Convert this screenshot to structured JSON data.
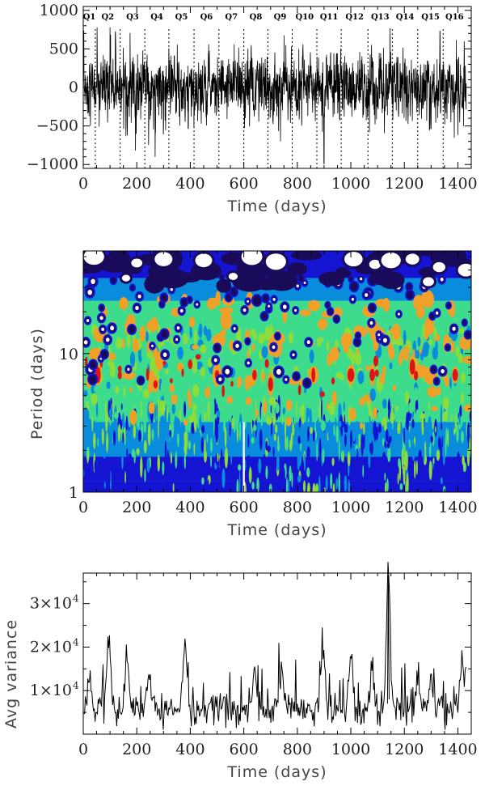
{
  "chart_data": [
    {
      "type": "line",
      "panel": "light-curve",
      "xlabel": "Time (days)",
      "ylabel": "",
      "xlim": [
        0,
        1450
      ],
      "ylim": [
        -1050,
        1050
      ],
      "xticks": [
        0,
        200,
        400,
        600,
        800,
        1000,
        1200,
        1400
      ],
      "yticks": [
        -1000,
        -500,
        0,
        500,
        1000
      ],
      "yticklabels": [
        "−1000",
        "−500",
        "0",
        "500",
        "1000"
      ],
      "quarters": [
        {
          "label": "Q1",
          "start": 0
        },
        {
          "label": "Q2",
          "start": 45
        },
        {
          "label": "Q3",
          "start": 138
        },
        {
          "label": "Q4",
          "start": 230
        },
        {
          "label": "Q5",
          "start": 320
        },
        {
          "label": "Q6",
          "start": 414
        },
        {
          "label": "Q7",
          "start": 507
        },
        {
          "label": "Q8",
          "start": 600
        },
        {
          "label": "Q9",
          "start": 690
        },
        {
          "label": "Q10",
          "start": 781
        },
        {
          "label": "Q11",
          "start": 873
        },
        {
          "label": "Q12",
          "start": 964
        },
        {
          "label": "Q13",
          "start": 1064
        },
        {
          "label": "Q14",
          "start": 1155
        },
        {
          "label": "Q15",
          "start": 1250
        },
        {
          "label": "Q16",
          "start": 1345
        }
      ],
      "quarter_boundaries": [
        45,
        138,
        230,
        320,
        414,
        507,
        600,
        690,
        781,
        873,
        964,
        1064,
        1155,
        1250,
        1345
      ],
      "series_description": "dense stochastic flux variations, mostly within ±500, occasional spikes to ~±750, one dip to ~-1000 near day 900"
    },
    {
      "type": "heatmap",
      "panel": "wavelet-power",
      "xlabel": "Time (days)",
      "ylabel": "Period (days)",
      "xlim": [
        0,
        1450
      ],
      "yscale": "log",
      "ylim": [
        1,
        55
      ],
      "xticks": [
        0,
        200,
        400,
        600,
        800,
        1000,
        1200,
        1400
      ],
      "yticks": [
        1,
        10
      ],
      "colormap": [
        "#ffffff",
        "#1a0a5a",
        "#1414d2",
        "#0a8cdc",
        "#3cdc8c",
        "#8cdc3c",
        "#f0a028",
        "#dc1414"
      ],
      "peak_periods_days": [
        6,
        7,
        8
      ],
      "peak_times_days": [
        55,
        270,
        500,
        640,
        700,
        860,
        1000,
        1080,
        1230,
        1390
      ],
      "gap_at_day": 600
    },
    {
      "type": "line",
      "panel": "average-variance",
      "xlabel": "Time (days)",
      "ylabel": "Avg variance",
      "xlim": [
        0,
        1450
      ],
      "ylim": [
        0,
        37000
      ],
      "xticks": [
        0,
        200,
        400,
        600,
        800,
        1000,
        1200,
        1400
      ],
      "yticks": [
        10000,
        20000,
        30000
      ],
      "yticklabels": [
        "1×10",
        "2×10",
        "3×10"
      ],
      "ytickexponent": "4",
      "peaks": [
        {
          "x": 25,
          "y": 12000
        },
        {
          "x": 95,
          "y": 20500
        },
        {
          "x": 165,
          "y": 17000
        },
        {
          "x": 245,
          "y": 13000
        },
        {
          "x": 380,
          "y": 20000
        },
        {
          "x": 640,
          "y": 14000
        },
        {
          "x": 740,
          "y": 15000
        },
        {
          "x": 895,
          "y": 20500
        },
        {
          "x": 1000,
          "y": 17500
        },
        {
          "x": 1080,
          "y": 15000
        },
        {
          "x": 1140,
          "y": 36500
        },
        {
          "x": 1250,
          "y": 13000
        },
        {
          "x": 1300,
          "y": 12000
        },
        {
          "x": 1415,
          "y": 16500
        }
      ],
      "baseline": 5000,
      "minimum": 1000
    }
  ]
}
